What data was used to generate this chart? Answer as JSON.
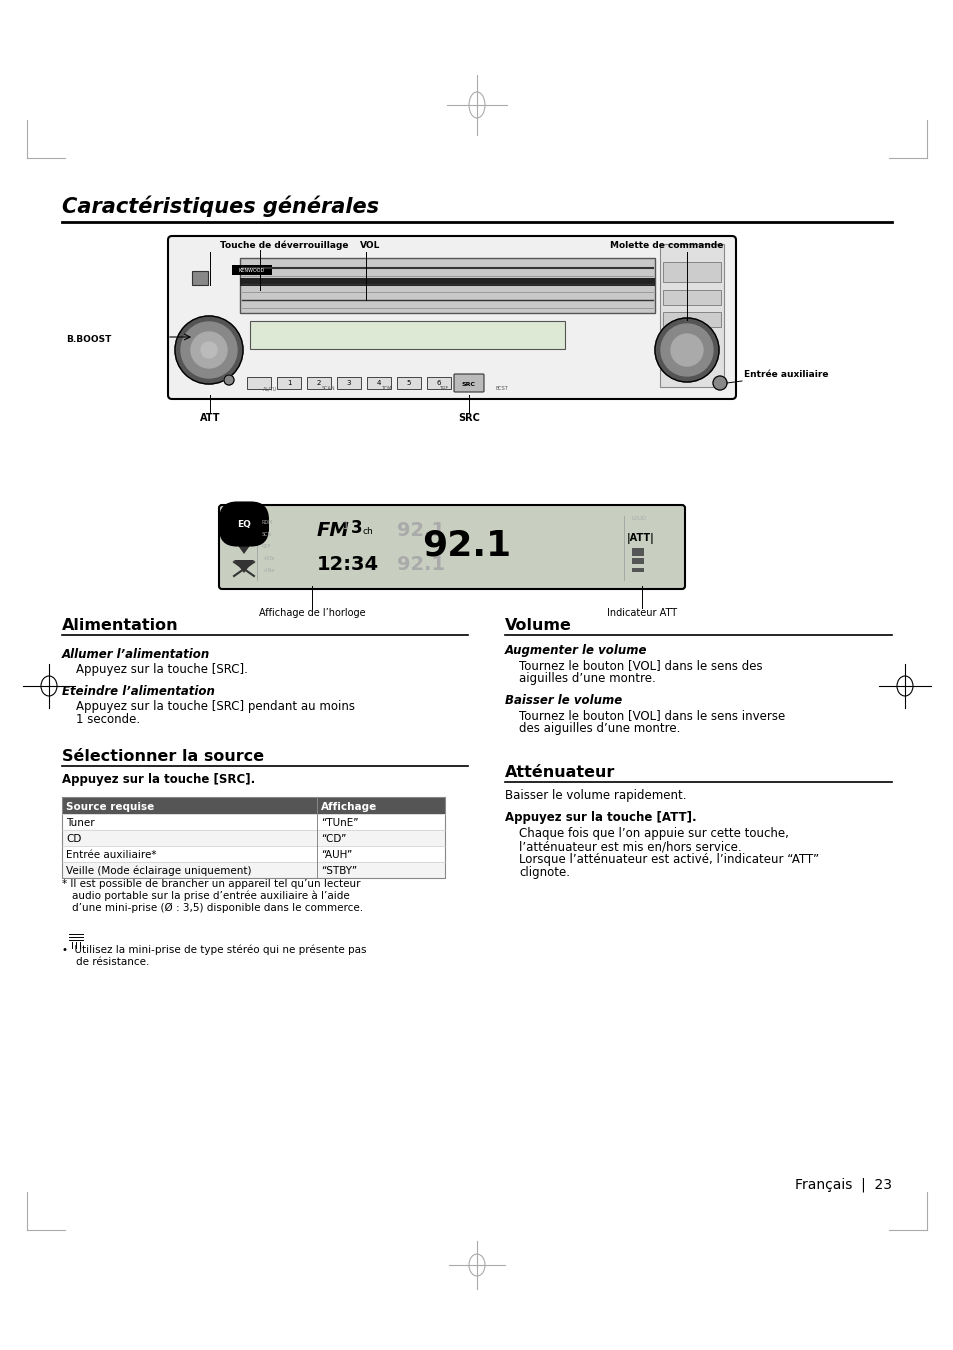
{
  "bg_color": "#ffffff",
  "page_title": "Caractéristiques générales",
  "section_left_1": "Alimentation",
  "section_left_2": "Sélectionner la source",
  "section_right_1": "Volume",
  "section_right_2": "Atténuateur",
  "alimentation_sub1_bold": "Allumer l’alimentation",
  "alimentation_sub1_text": "Appuyez sur la touche [SRC].",
  "alimentation_sub2_bold": "Eteindre l’alimentation",
  "source_intro": "Appuyez sur la touche [SRC].",
  "table_headers": [
    "Source requise",
    "Affichage"
  ],
  "table_rows": [
    [
      "Tuner",
      "“TUnE”"
    ],
    [
      "CD",
      "“CD”"
    ],
    [
      "Entrée auxiliaire*",
      "“AUH”"
    ],
    [
      "Veille (Mode éclairage uniquement)",
      "“STBY”"
    ]
  ],
  "volume_sub1_bold": "Augmenter le volume",
  "volume_sub2_bold": "Baisser le volume",
  "att_intro": "Baisser le volume rapidement.",
  "att_bold": "Appuyez sur la touche [ATT].",
  "att_text1": "Chaque fois que l’on appuie sur cette touche,",
  "att_text2": "l’atténuateur est mis en/hors service.",
  "att_text3": "Lorsque l’atténuateur est activé, l’indicateur “ATT”",
  "att_text4": "clignote.",
  "page_number": "Français  |  23",
  "label_touche": "Touche de déverrouillage",
  "label_vol": "VOL",
  "label_molette": "Molette de commande",
  "label_bboost": "B.BOOST",
  "label_att": "ATT",
  "label_src": "SRC",
  "label_entree": "Entrée auxiliaire",
  "label_horloge": "Affichage de l’horloge",
  "label_indicateur": "Indicateur ATT"
}
